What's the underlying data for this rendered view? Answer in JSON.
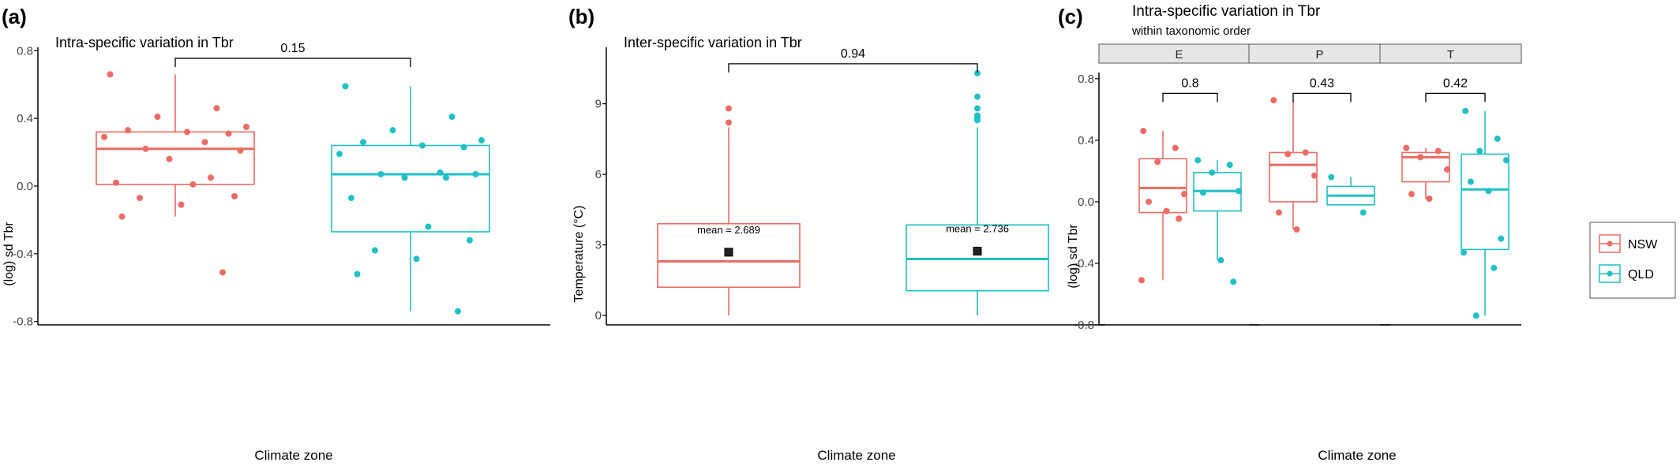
{
  "panel_labels": [
    "(a)",
    "(b)",
    "(c)"
  ],
  "colors": {
    "NSW": "#ee6b63",
    "QLD": "#1fc0c6",
    "axis": "#000000",
    "bracket": "#000000",
    "strip_fill": "#e6e6e6",
    "strip_border": "#555555"
  },
  "legend": {
    "items": [
      {
        "label": "NSW",
        "color": "#ee6b63"
      },
      {
        "label": "QLD",
        "color": "#1fc0c6"
      }
    ]
  },
  "chart_data": [
    {
      "type": "box",
      "panel": "(a)",
      "title": "Intra-specific variation in Tbr",
      "xlabel": "Climate zone",
      "ylabel": "(log) sd  Tbr",
      "ylim": [
        -0.82,
        0.82
      ],
      "yticks": [
        -0.8,
        -0.4,
        0.0,
        0.4,
        0.8
      ],
      "ytick_labels": [
        "-0.8",
        "-0.4",
        "0.0",
        "0.4",
        "0.8"
      ],
      "groups": [
        {
          "name": "NSW",
          "whisker_low": -0.18,
          "q1": 0.01,
          "median": 0.22,
          "q3": 0.32,
          "whisker_high": 0.66,
          "points": [
            0.66,
            0.46,
            0.41,
            0.35,
            0.33,
            0.32,
            0.31,
            0.29,
            0.26,
            0.22,
            0.21,
            0.16,
            0.05,
            0.02,
            0.01,
            -0.06,
            -0.07,
            -0.11,
            -0.18,
            -0.51
          ]
        },
        {
          "name": "QLD",
          "whisker_low": -0.74,
          "q1": -0.27,
          "median": 0.07,
          "q3": 0.24,
          "whisker_high": 0.59,
          "points": [
            0.59,
            0.41,
            0.33,
            0.27,
            0.26,
            0.24,
            0.23,
            0.19,
            0.08,
            0.07,
            0.07,
            0.05,
            0.05,
            -0.07,
            -0.24,
            -0.32,
            -0.38,
            -0.43,
            -0.52,
            -0.74
          ]
        }
      ],
      "comparison": {
        "label": "0.15",
        "y": 0.755
      }
    },
    {
      "type": "box",
      "panel": "(b)",
      "title": "Inter-specific variation in Tbr",
      "xlabel": "Climate zone",
      "ylabel": "Temperature (°C)",
      "ylim": [
        -0.4,
        11.4
      ],
      "yticks": [
        0,
        3,
        6,
        9
      ],
      "ytick_labels": [
        "0",
        "3",
        "6",
        "9"
      ],
      "groups": [
        {
          "name": "NSW",
          "whisker_low": 0,
          "q1": 1.2,
          "median": 2.3,
          "q3": 3.9,
          "whisker_high": 8.0,
          "mean": 2.689,
          "mean_label": "mean = 2.689",
          "points": [
            8.8,
            8.2
          ]
        },
        {
          "name": "QLD",
          "whisker_low": 0,
          "q1": 1.05,
          "median": 2.4,
          "q3": 3.85,
          "whisker_high": 8.0,
          "mean": 2.736,
          "mean_label": "mean = 2.736",
          "points": [
            10.3,
            9.3,
            8.8,
            8.5,
            8.4,
            8.3
          ]
        }
      ],
      "comparison": {
        "label": "0.94",
        "y": 10.7
      }
    },
    {
      "type": "box",
      "panel": "(c)",
      "title": "Intra-specific variation in Tbr",
      "subtitle": "within taxonomic order",
      "xlabel": "Climate zone",
      "ylabel": "(log) sd  Tbr",
      "ylim": [
        -0.8,
        0.84
      ],
      "yticks": [
        -0.8,
        -0.4,
        0.0,
        0.4,
        0.8
      ],
      "ytick_labels": [
        "-0.8",
        "-0.4",
        "0.0",
        "0.4",
        "0.8"
      ],
      "facets": [
        {
          "strip": "E",
          "comparison": {
            "label": "0.8",
            "y": 0.705
          },
          "groups": [
            {
              "name": "NSW",
              "whisker_low": -0.51,
              "q1": -0.07,
              "median": 0.09,
              "q3": 0.28,
              "whisker_high": 0.46,
              "points": [
                0.46,
                0.35,
                0.26,
                0.05,
                0.0,
                -0.06,
                -0.11,
                -0.51
              ]
            },
            {
              "name": "QLD",
              "whisker_low": -0.38,
              "q1": -0.06,
              "median": 0.07,
              "q3": 0.19,
              "whisker_high": 0.27,
              "points": [
                0.27,
                0.24,
                0.19,
                0.07,
                0.06,
                -0.38,
                -0.52
              ]
            }
          ]
        },
        {
          "strip": "P",
          "comparison": {
            "label": "0.43",
            "y": 0.705
          },
          "groups": [
            {
              "name": "NSW",
              "whisker_low": -0.18,
              "q1": 0.0,
              "median": 0.24,
              "q3": 0.32,
              "whisker_high": 0.66,
              "points": [
                0.66,
                0.32,
                0.31,
                0.17,
                -0.07,
                -0.18
              ]
            },
            {
              "name": "QLD",
              "whisker_low": -0.02,
              "q1": -0.02,
              "median": 0.04,
              "q3": 0.1,
              "whisker_high": 0.16,
              "points": [
                0.16,
                -0.07
              ]
            }
          ]
        },
        {
          "strip": "T",
          "comparison": {
            "label": "0.42",
            "y": 0.705
          },
          "groups": [
            {
              "name": "NSW",
              "whisker_low": 0.02,
              "q1": 0.13,
              "median": 0.29,
              "q3": 0.32,
              "whisker_high": 0.35,
              "points": [
                0.35,
                0.33,
                0.29,
                0.21,
                0.05,
                0.02
              ]
            },
            {
              "name": "QLD",
              "whisker_low": -0.74,
              "q1": -0.31,
              "median": 0.08,
              "q3": 0.31,
              "whisker_high": 0.59,
              "points": [
                0.59,
                0.41,
                0.33,
                0.27,
                0.13,
                0.07,
                -0.24,
                -0.33,
                -0.43,
                -0.74
              ]
            }
          ]
        }
      ]
    }
  ]
}
